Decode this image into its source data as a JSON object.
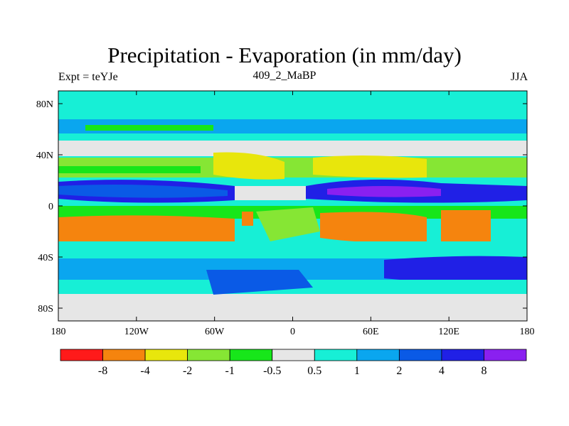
{
  "chart_data": {
    "type": "heatmap",
    "title": "Precipitation - Evaporation (in mm/day)",
    "subtitle_left": "Expt = teYJe",
    "subtitle_center": "409_2_MaBP",
    "subtitle_right": "JJA",
    "x_ticks": [
      "180",
      "120W",
      "60W",
      "0",
      "60E",
      "120E",
      "180"
    ],
    "x_tick_values": [
      -180,
      -120,
      -60,
      0,
      60,
      120,
      180
    ],
    "y_ticks": [
      "80N",
      "40N",
      "0",
      "40S",
      "80S"
    ],
    "y_tick_values": [
      80,
      40,
      0,
      -40,
      -80
    ],
    "xlim": [
      -180,
      180
    ],
    "ylim": [
      -90,
      90
    ],
    "colorbar": {
      "colors": [
        "#ff1a1a",
        "#f5840e",
        "#e8e60c",
        "#86e634",
        "#17e61a",
        "#e6e6e6",
        "#17efd6",
        "#0aa6ef",
        "#0a5ae6",
        "#2020e6",
        "#8a20f0"
      ],
      "labels": [
        "-8",
        "-4",
        "-2",
        "-1",
        "-0.5",
        "0.5",
        "1",
        "2",
        "4",
        "8"
      ],
      "boundaries": [
        -8,
        -4,
        -2,
        -1,
        -0.5,
        0.5,
        1,
        2,
        4,
        8
      ]
    }
  }
}
